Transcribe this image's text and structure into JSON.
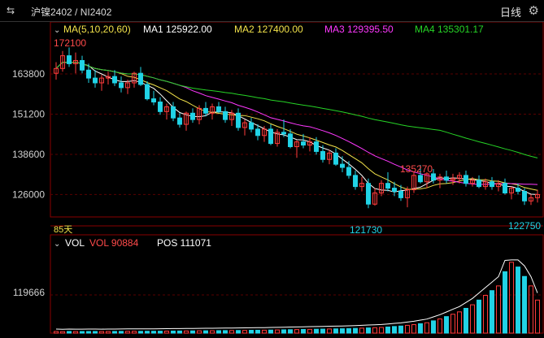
{
  "topbar": {
    "back_icon": "swap-icon",
    "title": "沪镍2402 / NI2402",
    "period": "日线",
    "settings_icon": "gear-icon"
  },
  "price_panel": {
    "ma_label": "MA(5,10,20,60)",
    "ma1": "MA1 125922.00",
    "ma2": "MA2 127400.00",
    "ma3": "MA3 129395.50",
    "ma4": "MA4 135301.17",
    "days_label": "85天",
    "high_label": "172100",
    "mid_high_label": "135270",
    "low_label": "121730",
    "last_low_label": "122750",
    "y_ticks": [
      "163800",
      "151200",
      "138600",
      "126000"
    ]
  },
  "volume_panel": {
    "vol_label": "VOL",
    "vol_value": "VOL 90884",
    "pos_value": "POS 111071",
    "y_tick": "119666"
  },
  "colors": {
    "up": "#ff3b3b",
    "down": "#21d3e6",
    "ma1": "#ffffff",
    "ma2": "#f2e24a",
    "ma3": "#ff38ff",
    "ma4": "#26d426",
    "grid": "#3a0000"
  },
  "chart_data": {
    "type": "candlestick",
    "y_range": [
      120000,
      175000
    ],
    "candles": [
      [
        164000,
        167500,
        162000,
        165500
      ],
      [
        165500,
        171000,
        164500,
        169500
      ],
      [
        169500,
        172100,
        166000,
        167000
      ],
      [
        167000,
        170500,
        164000,
        168000
      ],
      [
        168000,
        169500,
        164000,
        165000
      ],
      [
        165000,
        167000,
        161000,
        162500
      ],
      [
        162500,
        165000,
        159500,
        161000
      ],
      [
        161000,
        163500,
        158500,
        162500
      ],
      [
        162500,
        164500,
        160500,
        163000
      ],
      [
        163000,
        165000,
        160000,
        161000
      ],
      [
        161000,
        163000,
        158000,
        159500
      ],
      [
        159500,
        162000,
        157500,
        161000
      ],
      [
        161000,
        164500,
        159500,
        164000
      ],
      [
        164000,
        166000,
        160000,
        160500
      ],
      [
        160500,
        161500,
        155500,
        156000
      ],
      [
        156000,
        158500,
        154000,
        155000
      ],
      [
        155000,
        156500,
        151000,
        152000
      ],
      [
        152000,
        154500,
        149500,
        153500
      ],
      [
        153500,
        155000,
        149000,
        150000
      ],
      [
        150000,
        151500,
        147000,
        148000
      ],
      [
        148000,
        152000,
        146000,
        151500
      ],
      [
        151500,
        153000,
        148500,
        149500
      ],
      [
        149500,
        154000,
        148000,
        153000
      ],
      [
        153000,
        155000,
        150500,
        151500
      ],
      [
        151500,
        154500,
        149500,
        153500
      ],
      [
        153500,
        155000,
        151500,
        152000
      ],
      [
        152000,
        153500,
        148500,
        149500
      ],
      [
        149500,
        152500,
        147500,
        151500
      ],
      [
        151500,
        153000,
        146000,
        147000
      ],
      [
        147000,
        149500,
        144500,
        148500
      ],
      [
        148500,
        150000,
        145500,
        146500
      ],
      [
        146500,
        148000,
        143000,
        144500
      ],
      [
        144500,
        147500,
        142500,
        146500
      ],
      [
        146500,
        148000,
        141500,
        142000
      ],
      [
        142000,
        146500,
        141000,
        145500
      ],
      [
        145500,
        149500,
        144000,
        145000
      ],
      [
        145000,
        146500,
        140500,
        141000
      ],
      [
        141000,
        143000,
        137500,
        142500
      ],
      [
        142500,
        145000,
        140500,
        141500
      ],
      [
        141500,
        144000,
        139500,
        142500
      ],
      [
        142500,
        144000,
        138500,
        139500
      ],
      [
        139500,
        141500,
        136000,
        137000
      ],
      [
        137000,
        140000,
        135500,
        139000
      ],
      [
        139000,
        140500,
        135000,
        135500
      ],
      [
        135500,
        138000,
        133000,
        134500
      ],
      [
        134500,
        136500,
        131000,
        132000
      ],
      [
        132000,
        133500,
        127500,
        128500
      ],
      [
        128500,
        131500,
        127000,
        129500
      ],
      [
        129500,
        131000,
        121730,
        123000
      ],
      [
        123000,
        128000,
        122500,
        126500
      ],
      [
        126500,
        130500,
        125500,
        129500
      ],
      [
        129500,
        133000,
        127000,
        128000
      ],
      [
        128000,
        130000,
        125500,
        127000
      ],
      [
        127000,
        129000,
        124000,
        125000
      ],
      [
        125000,
        128500,
        122000,
        127500
      ],
      [
        127500,
        133000,
        126500,
        132000
      ],
      [
        132000,
        135270,
        129500,
        130000
      ],
      [
        130000,
        133000,
        128000,
        132500
      ],
      [
        132500,
        134000,
        129500,
        130500
      ],
      [
        130500,
        132500,
        128000,
        131500
      ],
      [
        131500,
        133500,
        129500,
        130500
      ],
      [
        130500,
        132500,
        129000,
        131000
      ],
      [
        131000,
        133000,
        129500,
        132000
      ],
      [
        132000,
        133500,
        128500,
        129500
      ],
      [
        129500,
        131500,
        128500,
        130500
      ],
      [
        130500,
        132000,
        128000,
        128500
      ],
      [
        128500,
        131000,
        127500,
        130000
      ],
      [
        130000,
        131500,
        127500,
        128500
      ],
      [
        128500,
        130500,
        127000,
        129500
      ],
      [
        129500,
        131000,
        126000,
        126500
      ],
      [
        126500,
        128500,
        124500,
        128000
      ],
      [
        128000,
        129500,
        126000,
        127000
      ],
      [
        127000,
        128000,
        122750,
        124000
      ],
      [
        124000,
        126000,
        122750,
        125000
      ],
      [
        125000,
        127500,
        123500,
        126000
      ]
    ],
    "volumes": [
      700,
      650,
      720,
      680,
      690,
      700,
      710,
      690,
      700,
      720,
      740,
      760,
      780,
      760,
      790,
      800,
      820,
      850,
      880,
      900,
      920,
      950,
      980,
      1000,
      1020,
      1050,
      1080,
      1100,
      1120,
      1150,
      1200,
      1220,
      1250,
      1300,
      1350,
      1400,
      1450,
      1500,
      1550,
      1600,
      1650,
      1700,
      1750,
      1800,
      1850,
      1900,
      2000,
      2100,
      2200,
      2300,
      2400,
      2600,
      2800,
      3000,
      3300,
      3600,
      4000,
      4400,
      5200,
      6000,
      7000,
      8000,
      9000,
      10500,
      12000,
      14000,
      16000,
      18000,
      20000,
      26000,
      30000,
      28000,
      24000,
      20000,
      14000
    ],
    "volume_range": [
      0,
      32000
    ]
  }
}
